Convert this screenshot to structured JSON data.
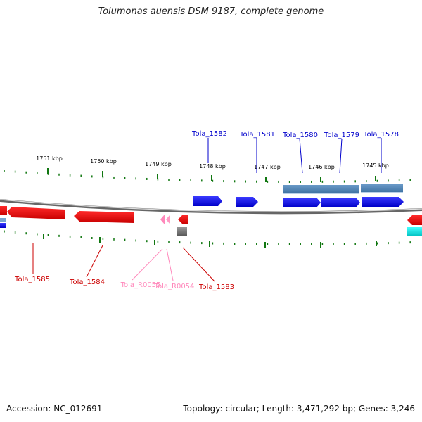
{
  "title": "Tolumonas auensis DSM 9187, complete genome",
  "accession": "Accession: NC_012691",
  "topology": "Topology: circular; Length: 3,471,292 bp; Genes: 3,246",
  "colors": {
    "forward_cds": "#0000ee",
    "reverse_cds": "#ee0000",
    "rna": "#ff88bb",
    "domain_bar": "#4682b4",
    "cyan_feature": "#00dddd",
    "gray_feature": "#777777",
    "tick": "#117711",
    "backbone": "#888888"
  },
  "ticks": [
    "1751 kbp",
    "1750 kbp",
    "1749 kbp",
    "1748 kbp",
    "1747 kbp",
    "1746 kbp",
    "1745 kbp"
  ],
  "genes_top": [
    "Tola_1582",
    "Tola_1581",
    "Tola_1580",
    "Tola_1579",
    "Tola_1578"
  ],
  "genes_bottom": [
    "Tola_1585",
    "Tola_1584",
    "Tola_R0055",
    "Tola_R0054",
    "Tola_1583"
  ]
}
